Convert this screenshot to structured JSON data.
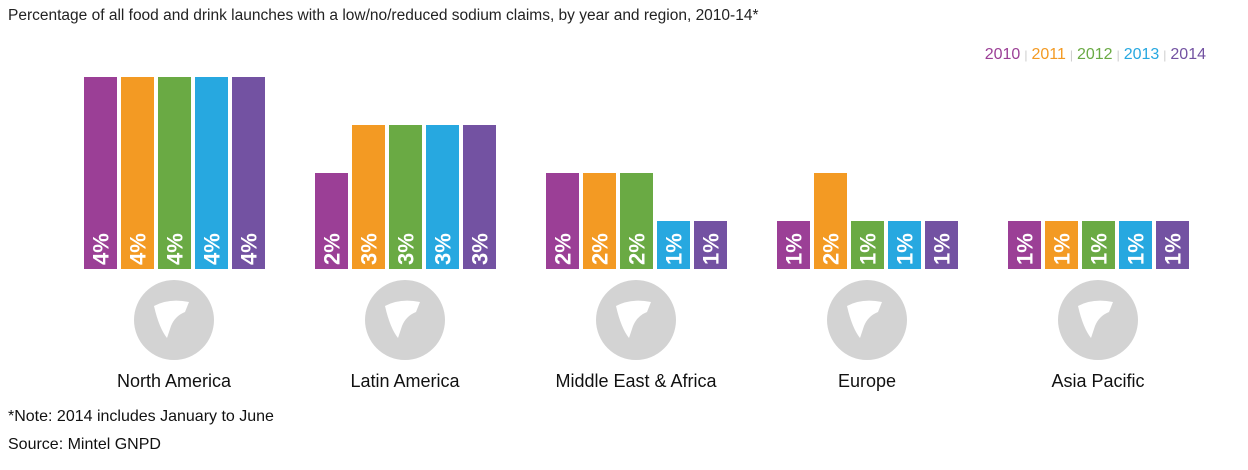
{
  "chart_data": {
    "type": "bar",
    "title": "Percentage of all food and drink launches with a low/no/reduced sodium claims, by year and region, 2010-14*",
    "categories": [
      "North America",
      "Latin America",
      "Middle East & Africa",
      "Europe",
      "Asia Pacific"
    ],
    "series": [
      {
        "name": "2010",
        "color": "#9b3f96",
        "values": [
          4,
          2,
          2,
          1,
          1
        ]
      },
      {
        "name": "2011",
        "color": "#f39a23",
        "values": [
          4,
          3,
          2,
          2,
          1
        ]
      },
      {
        "name": "2012",
        "color": "#6aaa44",
        "values": [
          4,
          3,
          2,
          1,
          1
        ]
      },
      {
        "name": "2013",
        "color": "#27a8e0",
        "values": [
          4,
          3,
          1,
          1,
          1
        ]
      },
      {
        "name": "2014",
        "color": "#7352a2",
        "values": [
          4,
          3,
          1,
          1,
          1
        ]
      }
    ],
    "value_suffix": "%",
    "legend": "top-right",
    "grid": false
  },
  "notes": {
    "note": "*Note: 2014 includes January to June",
    "source": "Source: Mintel GNPD"
  }
}
